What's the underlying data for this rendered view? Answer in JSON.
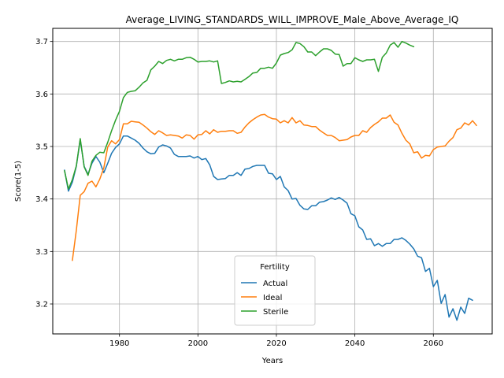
{
  "chart_data": {
    "type": "line",
    "title": "Average_LIVING_STANDARDS_WILL_IMPROVE_Male_Above_Average_IQ",
    "xlabel": "Years",
    "ylabel": "Score(1-5)",
    "xlim": [
      1963,
      2075
    ],
    "ylim": [
      3.143,
      3.725
    ],
    "xticks": [
      1980,
      2000,
      2020,
      2040,
      2060
    ],
    "yticks": [
      3.2,
      3.3,
      3.4,
      3.5,
      3.6,
      3.7
    ],
    "xtick_labels": [
      "1980",
      "2000",
      "2020",
      "2040",
      "2060"
    ],
    "ytick_labels": [
      "3.2",
      "3.3",
      "3.4",
      "3.5",
      "3.6",
      "3.7"
    ],
    "grid": true,
    "legend": {
      "title": "Fertility",
      "location": "lower-center"
    },
    "series": [
      {
        "name": "Actual",
        "color": "#1f77b4",
        "points": [
          [
            1966,
            3.455
          ],
          [
            1967,
            3.415
          ],
          [
            1968,
            3.432
          ],
          [
            1969,
            3.462
          ],
          [
            1970,
            3.513
          ],
          [
            1971,
            3.462
          ],
          [
            1972,
            3.447
          ],
          [
            1973,
            3.468
          ],
          [
            1974,
            3.481
          ],
          [
            1975,
            3.47
          ],
          [
            1976,
            3.45
          ],
          [
            1977,
            3.468
          ],
          [
            1978,
            3.487
          ],
          [
            1979,
            3.498
          ],
          [
            1980,
            3.505
          ],
          [
            1981,
            3.52
          ],
          [
            1982,
            3.52
          ],
          [
            1983,
            3.516
          ],
          [
            1984,
            3.512
          ],
          [
            1985,
            3.506
          ],
          [
            1986,
            3.497
          ],
          [
            1987,
            3.49
          ],
          [
            1988,
            3.486
          ],
          [
            1989,
            3.487
          ],
          [
            1990,
            3.499
          ],
          [
            1991,
            3.503
          ],
          [
            1992,
            3.501
          ],
          [
            1993,
            3.497
          ],
          [
            1994,
            3.485
          ],
          [
            1995,
            3.481
          ],
          [
            1996,
            3.481
          ],
          [
            1997,
            3.481
          ],
          [
            1998,
            3.482
          ],
          [
            1999,
            3.478
          ],
          [
            2000,
            3.481
          ],
          [
            2001,
            3.475
          ],
          [
            2002,
            3.477
          ],
          [
            2003,
            3.465
          ],
          [
            2004,
            3.443
          ],
          [
            2005,
            3.437
          ],
          [
            2006,
            3.438
          ],
          [
            2007,
            3.439
          ],
          [
            2008,
            3.445
          ],
          [
            2009,
            3.445
          ],
          [
            2010,
            3.45
          ],
          [
            2011,
            3.445
          ],
          [
            2012,
            3.457
          ],
          [
            2013,
            3.458
          ],
          [
            2014,
            3.462
          ],
          [
            2015,
            3.464
          ],
          [
            2016,
            3.464
          ],
          [
            2017,
            3.464
          ],
          [
            2018,
            3.449
          ],
          [
            2019,
            3.448
          ],
          [
            2020,
            3.437
          ],
          [
            2021,
            3.443
          ],
          [
            2022,
            3.423
          ],
          [
            2023,
            3.416
          ],
          [
            2024,
            3.4
          ],
          [
            2025,
            3.401
          ],
          [
            2026,
            3.388
          ],
          [
            2027,
            3.381
          ],
          [
            2028,
            3.38
          ],
          [
            2029,
            3.387
          ],
          [
            2030,
            3.387
          ],
          [
            2031,
            3.394
          ],
          [
            2032,
            3.395
          ],
          [
            2033,
            3.398
          ],
          [
            2034,
            3.402
          ],
          [
            2035,
            3.399
          ],
          [
            2036,
            3.403
          ],
          [
            2037,
            3.398
          ],
          [
            2038,
            3.392
          ],
          [
            2039,
            3.372
          ],
          [
            2040,
            3.368
          ],
          [
            2041,
            3.347
          ],
          [
            2042,
            3.341
          ],
          [
            2043,
            3.323
          ],
          [
            2044,
            3.324
          ],
          [
            2045,
            3.311
          ],
          [
            2046,
            3.315
          ],
          [
            2047,
            3.31
          ],
          [
            2048,
            3.315
          ],
          [
            2049,
            3.315
          ],
          [
            2050,
            3.323
          ],
          [
            2051,
            3.323
          ],
          [
            2052,
            3.326
          ],
          [
            2053,
            3.321
          ],
          [
            2054,
            3.314
          ],
          [
            2055,
            3.305
          ],
          [
            2056,
            3.291
          ],
          [
            2057,
            3.288
          ],
          [
            2058,
            3.262
          ],
          [
            2059,
            3.268
          ],
          [
            2060,
            3.233
          ],
          [
            2061,
            3.245
          ],
          [
            2062,
            3.201
          ],
          [
            2063,
            3.218
          ],
          [
            2064,
            3.175
          ],
          [
            2065,
            3.191
          ],
          [
            2066,
            3.169
          ],
          [
            2067,
            3.194
          ],
          [
            2068,
            3.182
          ],
          [
            2069,
            3.211
          ],
          [
            2070,
            3.207
          ]
        ]
      },
      {
        "name": "Ideal",
        "color": "#ff7f0e",
        "points": [
          [
            1968,
            3.283
          ],
          [
            1969,
            3.34
          ],
          [
            1970,
            3.407
          ],
          [
            1971,
            3.414
          ],
          [
            1972,
            3.43
          ],
          [
            1973,
            3.434
          ],
          [
            1974,
            3.423
          ],
          [
            1975,
            3.438
          ],
          [
            1976,
            3.459
          ],
          [
            1977,
            3.499
          ],
          [
            1978,
            3.511
          ],
          [
            1979,
            3.505
          ],
          [
            1980,
            3.513
          ],
          [
            1981,
            3.543
          ],
          [
            1982,
            3.543
          ],
          [
            1983,
            3.548
          ],
          [
            1984,
            3.547
          ],
          [
            1985,
            3.546
          ],
          [
            1986,
            3.541
          ],
          [
            1987,
            3.535
          ],
          [
            1988,
            3.528
          ],
          [
            1989,
            3.523
          ],
          [
            1990,
            3.53
          ],
          [
            1991,
            3.526
          ],
          [
            1992,
            3.521
          ],
          [
            1993,
            3.522
          ],
          [
            1994,
            3.521
          ],
          [
            1995,
            3.52
          ],
          [
            1996,
            3.516
          ],
          [
            1997,
            3.522
          ],
          [
            1998,
            3.521
          ],
          [
            1999,
            3.514
          ],
          [
            2000,
            3.522
          ],
          [
            2001,
            3.523
          ],
          [
            2002,
            3.53
          ],
          [
            2003,
            3.524
          ],
          [
            2004,
            3.532
          ],
          [
            2005,
            3.527
          ],
          [
            2006,
            3.529
          ],
          [
            2007,
            3.529
          ],
          [
            2008,
            3.53
          ],
          [
            2009,
            3.53
          ],
          [
            2010,
            3.525
          ],
          [
            2011,
            3.527
          ],
          [
            2012,
            3.537
          ],
          [
            2013,
            3.545
          ],
          [
            2014,
            3.551
          ],
          [
            2015,
            3.556
          ],
          [
            2016,
            3.56
          ],
          [
            2017,
            3.561
          ],
          [
            2018,
            3.556
          ],
          [
            2019,
            3.553
          ],
          [
            2020,
            3.552
          ],
          [
            2021,
            3.545
          ],
          [
            2022,
            3.549
          ],
          [
            2023,
            3.545
          ],
          [
            2024,
            3.555
          ],
          [
            2025,
            3.545
          ],
          [
            2026,
            3.549
          ],
          [
            2027,
            3.541
          ],
          [
            2028,
            3.54
          ],
          [
            2029,
            3.538
          ],
          [
            2030,
            3.538
          ],
          [
            2031,
            3.531
          ],
          [
            2032,
            3.526
          ],
          [
            2033,
            3.521
          ],
          [
            2034,
            3.521
          ],
          [
            2035,
            3.517
          ],
          [
            2036,
            3.511
          ],
          [
            2037,
            3.512
          ],
          [
            2038,
            3.513
          ],
          [
            2039,
            3.518
          ],
          [
            2040,
            3.521
          ],
          [
            2041,
            3.521
          ],
          [
            2042,
            3.53
          ],
          [
            2043,
            3.527
          ],
          [
            2044,
            3.536
          ],
          [
            2045,
            3.542
          ],
          [
            2046,
            3.547
          ],
          [
            2047,
            3.554
          ],
          [
            2048,
            3.554
          ],
          [
            2049,
            3.56
          ],
          [
            2050,
            3.546
          ],
          [
            2051,
            3.541
          ],
          [
            2052,
            3.525
          ],
          [
            2053,
            3.512
          ],
          [
            2054,
            3.505
          ],
          [
            2055,
            3.488
          ],
          [
            2056,
            3.49
          ],
          [
            2057,
            3.478
          ],
          [
            2058,
            3.483
          ],
          [
            2059,
            3.482
          ],
          [
            2060,
            3.494
          ],
          [
            2061,
            3.499
          ],
          [
            2062,
            3.5
          ],
          [
            2063,
            3.501
          ],
          [
            2064,
            3.51
          ],
          [
            2065,
            3.517
          ],
          [
            2066,
            3.532
          ],
          [
            2067,
            3.535
          ],
          [
            2068,
            3.545
          ],
          [
            2069,
            3.541
          ],
          [
            2070,
            3.549
          ],
          [
            2071,
            3.54
          ]
        ]
      },
      {
        "name": "Sterile",
        "color": "#2ca02c",
        "points": [
          [
            1966,
            3.454
          ],
          [
            1967,
            3.419
          ],
          [
            1968,
            3.437
          ],
          [
            1969,
            3.463
          ],
          [
            1970,
            3.515
          ],
          [
            1971,
            3.461
          ],
          [
            1972,
            3.445
          ],
          [
            1973,
            3.472
          ],
          [
            1974,
            3.483
          ],
          [
            1975,
            3.489
          ],
          [
            1976,
            3.488
          ],
          [
            1977,
            3.508
          ],
          [
            1978,
            3.53
          ],
          [
            1979,
            3.55
          ],
          [
            1980,
            3.567
          ],
          [
            1981,
            3.593
          ],
          [
            1982,
            3.603
          ],
          [
            1983,
            3.605
          ],
          [
            1984,
            3.606
          ],
          [
            1985,
            3.613
          ],
          [
            1986,
            3.621
          ],
          [
            1987,
            3.626
          ],
          [
            1988,
            3.646
          ],
          [
            1989,
            3.653
          ],
          [
            1990,
            3.662
          ],
          [
            1991,
            3.658
          ],
          [
            1992,
            3.664
          ],
          [
            1993,
            3.666
          ],
          [
            1994,
            3.663
          ],
          [
            1995,
            3.666
          ],
          [
            1996,
            3.666
          ],
          [
            1997,
            3.669
          ],
          [
            1998,
            3.67
          ],
          [
            1999,
            3.666
          ],
          [
            2000,
            3.661
          ],
          [
            2001,
            3.662
          ],
          [
            2002,
            3.662
          ],
          [
            2003,
            3.663
          ],
          [
            2004,
            3.661
          ],
          [
            2005,
            3.663
          ],
          [
            2006,
            3.62
          ],
          [
            2007,
            3.622
          ],
          [
            2008,
            3.625
          ],
          [
            2009,
            3.623
          ],
          [
            2010,
            3.624
          ],
          [
            2011,
            3.623
          ],
          [
            2012,
            3.628
          ],
          [
            2013,
            3.633
          ],
          [
            2014,
            3.64
          ],
          [
            2015,
            3.641
          ],
          [
            2016,
            3.649
          ],
          [
            2017,
            3.649
          ],
          [
            2018,
            3.651
          ],
          [
            2019,
            3.649
          ],
          [
            2020,
            3.659
          ],
          [
            2021,
            3.674
          ],
          [
            2022,
            3.677
          ],
          [
            2023,
            3.679
          ],
          [
            2024,
            3.684
          ],
          [
            2025,
            3.698
          ],
          [
            2026,
            3.696
          ],
          [
            2027,
            3.69
          ],
          [
            2028,
            3.68
          ],
          [
            2029,
            3.68
          ],
          [
            2030,
            3.673
          ],
          [
            2031,
            3.68
          ],
          [
            2032,
            3.686
          ],
          [
            2033,
            3.686
          ],
          [
            2034,
            3.683
          ],
          [
            2035,
            3.676
          ],
          [
            2036,
            3.675
          ],
          [
            2037,
            3.653
          ],
          [
            2038,
            3.658
          ],
          [
            2039,
            3.658
          ],
          [
            2040,
            3.669
          ],
          [
            2041,
            3.665
          ],
          [
            2042,
            3.662
          ],
          [
            2043,
            3.665
          ],
          [
            2044,
            3.665
          ],
          [
            2045,
            3.666
          ],
          [
            2046,
            3.643
          ],
          [
            2047,
            3.67
          ],
          [
            2048,
            3.678
          ],
          [
            2049,
            3.693
          ],
          [
            2050,
            3.698
          ],
          [
            2051,
            3.689
          ],
          [
            2052,
            3.7
          ],
          [
            2053,
            3.697
          ],
          [
            2054,
            3.693
          ],
          [
            2055,
            3.69
          ]
        ]
      }
    ]
  }
}
